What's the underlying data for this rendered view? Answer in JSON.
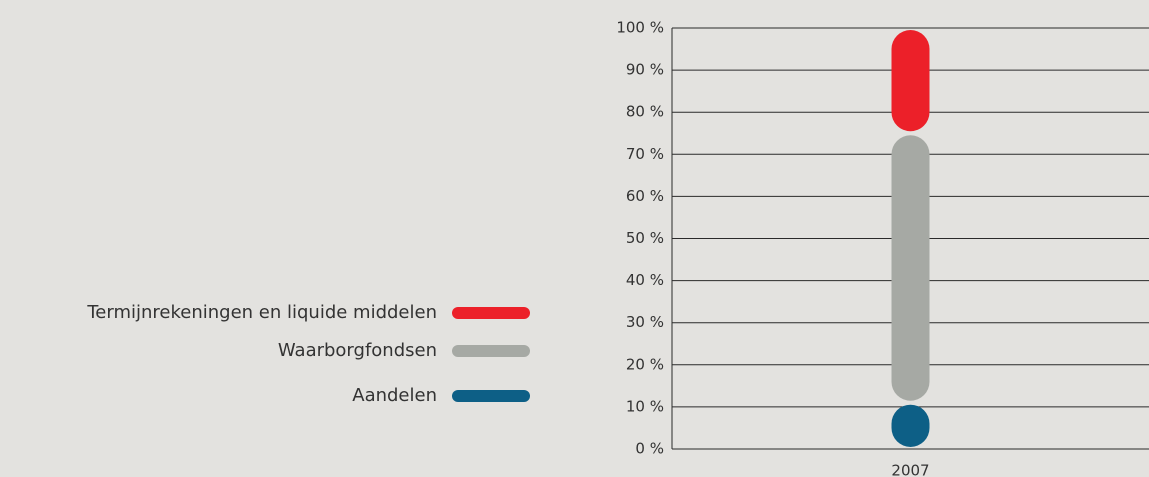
{
  "chart_data": {
    "type": "stacked_bar",
    "categories": [
      "2007"
    ],
    "series": [
      {
        "name": "Aandelen",
        "color": "#0d5f86",
        "values": [
          11
        ]
      },
      {
        "name": "Waarborgfondsen",
        "color": "#a6a9a4",
        "values": [
          64
        ]
      },
      {
        "name": "Termijnrekeningen en liquide middelen",
        "color": "#ec2029",
        "values": [
          25
        ]
      }
    ],
    "ylim": [
      0,
      100
    ],
    "yticks": [
      {
        "value": 0,
        "label": "0 %"
      },
      {
        "value": 10,
        "label": "10 %"
      },
      {
        "value": 20,
        "label": "20 %"
      },
      {
        "value": 30,
        "label": "30 %"
      },
      {
        "value": 40,
        "label": "40 %"
      },
      {
        "value": 50,
        "label": "50 %"
      },
      {
        "value": 60,
        "label": "60 %"
      },
      {
        "value": 70,
        "label": "70 %"
      },
      {
        "value": 80,
        "label": "80 %"
      },
      {
        "value": 90,
        "label": "90 %"
      },
      {
        "value": 100,
        "label": "100 %"
      }
    ],
    "grid": true
  }
}
